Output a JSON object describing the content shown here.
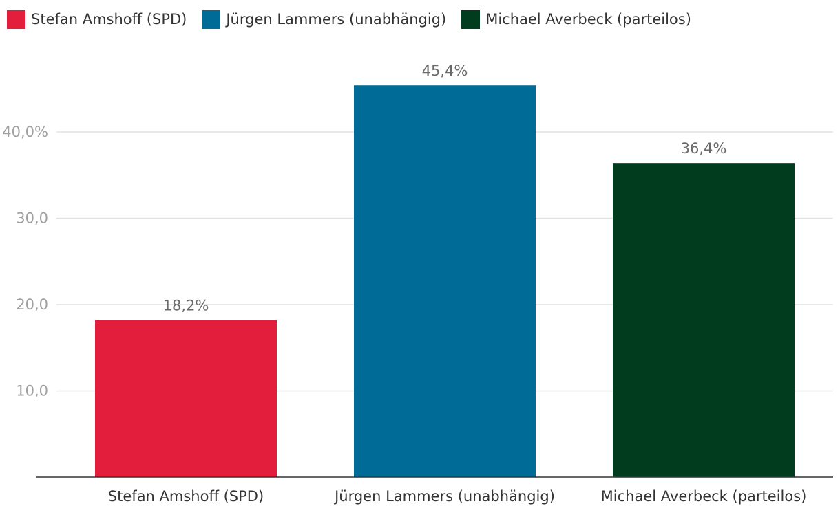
{
  "chart_data": {
    "type": "bar",
    "title": "",
    "xlabel": "",
    "ylabel": "",
    "categories": [
      "Stefan Amshoff (SPD)",
      "Jürgen Lammers (unabhängig)",
      "Michael Averbeck (parteilos)"
    ],
    "values": [
      18.2,
      45.4,
      36.4
    ],
    "value_labels": [
      "18,2%",
      "45,4%",
      "36,4%"
    ],
    "colors": [
      "#e31e3d",
      "#006b96",
      "#003c1d"
    ],
    "ylim": [
      0,
      50
    ],
    "yticks": [
      {
        "value": 10,
        "label": "10,0"
      },
      {
        "value": 20,
        "label": "20,0"
      },
      {
        "value": 30,
        "label": "30,0"
      },
      {
        "value": 40,
        "label": "40,0%"
      }
    ],
    "grid": true,
    "legend": {
      "position": "top-left",
      "entries": [
        {
          "label": "Stefan Amshoff (SPD)",
          "color": "#e31e3d"
        },
        {
          "label": "Jürgen Lammers (unabhängig)",
          "color": "#006b96"
        },
        {
          "label": "Michael Averbeck (parteilos)",
          "color": "#003c1d"
        }
      ]
    }
  }
}
